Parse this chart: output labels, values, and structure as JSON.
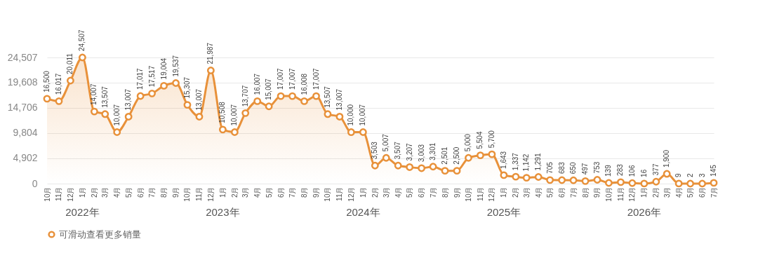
{
  "chart_data": {
    "type": "area",
    "x": [
      "2021-10",
      "2021-11",
      "2021-12",
      "2022-01",
      "2022-02",
      "2022-03",
      "2022-04",
      "2022-05",
      "2022-06",
      "2022-07",
      "2022-08",
      "2022-09",
      "2022-10",
      "2022-11",
      "2022-12",
      "2023-01",
      "2023-02",
      "2023-03",
      "2023-04",
      "2023-05",
      "2023-06",
      "2023-07",
      "2023-08",
      "2023-09",
      "2023-10",
      "2023-11",
      "2023-12",
      "2024-01",
      "2024-02",
      "2024-03",
      "2024-04",
      "2024-05",
      "2024-06",
      "2024-07",
      "2024-08",
      "2024-09",
      "2024-10",
      "2024-11",
      "2024-12",
      "2025-01",
      "2025-02",
      "2025-03",
      "2025-04",
      "2025-05",
      "2025-06",
      "2025-07",
      "2025-08",
      "2025-09",
      "2025-10",
      "2025-11",
      "2025-12",
      "2026-01",
      "2026-02",
      "2026-03",
      "2026-04",
      "2026-05",
      "2026-06",
      "2026-07"
    ],
    "series": [
      {
        "name": "可滑动查看更多销量",
        "color": "#e8913a",
        "values": [
          16500,
          16017,
          20011,
          24507,
          14007,
          13507,
          10007,
          13007,
          17017,
          17517,
          19004,
          19537,
          15307,
          13007,
          21987,
          10508,
          10007,
          13707,
          16007,
          15007,
          17007,
          17007,
          16008,
          17007,
          13507,
          13007,
          10000,
          10007,
          3503,
          5007,
          3507,
          3207,
          3003,
          3301,
          2501,
          2500,
          5000,
          5504,
          5700,
          1643,
          1337,
          1142,
          1291,
          705,
          683,
          650,
          497,
          753,
          139,
          283,
          106,
          16,
          377,
          1900,
          9,
          2,
          3,
          145
        ],
        "value_labels": [
          "16,500",
          "16,017",
          "20,011",
          "24,507",
          "14,007",
          "13,507",
          "10,007",
          "13,007",
          "17,017",
          "17,517",
          "19,004",
          "19,537",
          "15,307",
          "13,007",
          "21,987",
          "10,508",
          "10,007",
          "13,707",
          "16,007",
          "15,007",
          "17,007",
          "17,007",
          "16,008",
          "17,007",
          "13,507",
          "13,007",
          "10,000",
          "10,007",
          "3,503",
          "5,007",
          "3,507",
          "3,207",
          "3,003",
          "3,301",
          "2,501",
          "2,500",
          "5,000",
          "5,504",
          "5,700",
          "1,643",
          "1,337",
          "1,142",
          "1,291",
          "705",
          "683",
          "650",
          "497",
          "753",
          "139",
          "283",
          "106",
          "16",
          "377",
          "1,900",
          "9",
          "2",
          "3",
          "145"
        ]
      }
    ],
    "xlim": [
      "2021-10",
      "2026-07"
    ],
    "xticks": [
      {
        "value": "2021-10",
        "label": "10月"
      },
      {
        "value": "2021-11",
        "label": "11月"
      },
      {
        "value": "2021-12",
        "label": "12月"
      },
      {
        "value": "2022-01",
        "label": "1月"
      },
      {
        "value": "2022-02",
        "label": "2月"
      },
      {
        "value": "2022-03",
        "label": "3月"
      },
      {
        "value": "2022-04",
        "label": "4月"
      },
      {
        "value": "2022-05",
        "label": "5月"
      },
      {
        "value": "2022-06",
        "label": "6月"
      },
      {
        "value": "2022-07",
        "label": "7月"
      },
      {
        "value": "2022-08",
        "label": "8月"
      },
      {
        "value": "2022-09",
        "label": "9月"
      },
      {
        "value": "2022-10",
        "label": "10月"
      },
      {
        "value": "2022-11",
        "label": "11月"
      },
      {
        "value": "2022-12",
        "label": "12月"
      },
      {
        "value": "2023-01",
        "label": "1月"
      },
      {
        "value": "2023-02",
        "label": "2月"
      },
      {
        "value": "2023-03",
        "label": "3月"
      },
      {
        "value": "2023-04",
        "label": "4月"
      },
      {
        "value": "2023-05",
        "label": "5月"
      },
      {
        "value": "2023-06",
        "label": "6月"
      },
      {
        "value": "2023-07",
        "label": "7月"
      },
      {
        "value": "2023-08",
        "label": "8月"
      },
      {
        "value": "2023-09",
        "label": "9月"
      },
      {
        "value": "2023-10",
        "label": "10月"
      },
      {
        "value": "2023-11",
        "label": "11月"
      },
      {
        "value": "2023-12",
        "label": "12月"
      },
      {
        "value": "2024-01",
        "label": "1月"
      },
      {
        "value": "2024-02",
        "label": "2月"
      },
      {
        "value": "2024-03",
        "label": "3月"
      },
      {
        "value": "2024-04",
        "label": "4月"
      },
      {
        "value": "2024-05",
        "label": "5月"
      },
      {
        "value": "2024-06",
        "label": "6月"
      },
      {
        "value": "2024-07",
        "label": "7月"
      },
      {
        "value": "2024-08",
        "label": "8月"
      },
      {
        "value": "2024-09",
        "label": "9月"
      },
      {
        "value": "2024-10",
        "label": "10月"
      },
      {
        "value": "2024-11",
        "label": "11月"
      },
      {
        "value": "2024-12",
        "label": "12月"
      },
      {
        "value": "2025-01",
        "label": "1月"
      },
      {
        "value": "2025-02",
        "label": "2月"
      },
      {
        "value": "2025-03",
        "label": "3月"
      },
      {
        "value": "2025-04",
        "label": "4月"
      },
      {
        "value": "2025-05",
        "label": "5月"
      },
      {
        "value": "2025-06",
        "label": "6月"
      },
      {
        "value": "2025-07",
        "label": "7月"
      },
      {
        "value": "2025-08",
        "label": "8月"
      },
      {
        "value": "2025-09",
        "label": "9月"
      },
      {
        "value": "2025-10",
        "label": "10月"
      },
      {
        "value": "2025-11",
        "label": "11月"
      },
      {
        "value": "2025-12",
        "label": "12月"
      },
      {
        "value": "2026-01",
        "label": "1月"
      },
      {
        "value": "2026-02",
        "label": "2月"
      },
      {
        "value": "2026-03",
        "label": "3月"
      },
      {
        "value": "2026-04",
        "label": "4月"
      },
      {
        "value": "2026-05",
        "label": "5月"
      },
      {
        "value": "2026-06",
        "label": "6月"
      },
      {
        "value": "2026-07",
        "label": "7月"
      }
    ],
    "ylim": [
      0,
      24507
    ],
    "yticks": [
      0,
      {
        "value": 4902,
        "label": "4,902"
      },
      {
        "value": 9804,
        "label": "9,804"
      },
      {
        "value": 14706,
        "label": "14,706"
      },
      {
        "value": 19608,
        "label": "19,608"
      },
      {
        "value": 24507,
        "label": "24,507"
      }
    ],
    "x2lim": [
      "2021-10",
      "2026-07"
    ],
    "x2ticks": [
      {
        "value": "2022-01",
        "label": "2022年"
      },
      {
        "value": "2023-01",
        "label": "2023年"
      },
      {
        "value": "2024-01",
        "label": "2024年"
      },
      {
        "value": "2025-01",
        "label": "2025年"
      },
      {
        "value": "2026-01",
        "label": "2026年"
      }
    ],
    "grid": "y",
    "legend": "bottom left",
    "marker": "circle",
    "line_style": "solid"
  }
}
